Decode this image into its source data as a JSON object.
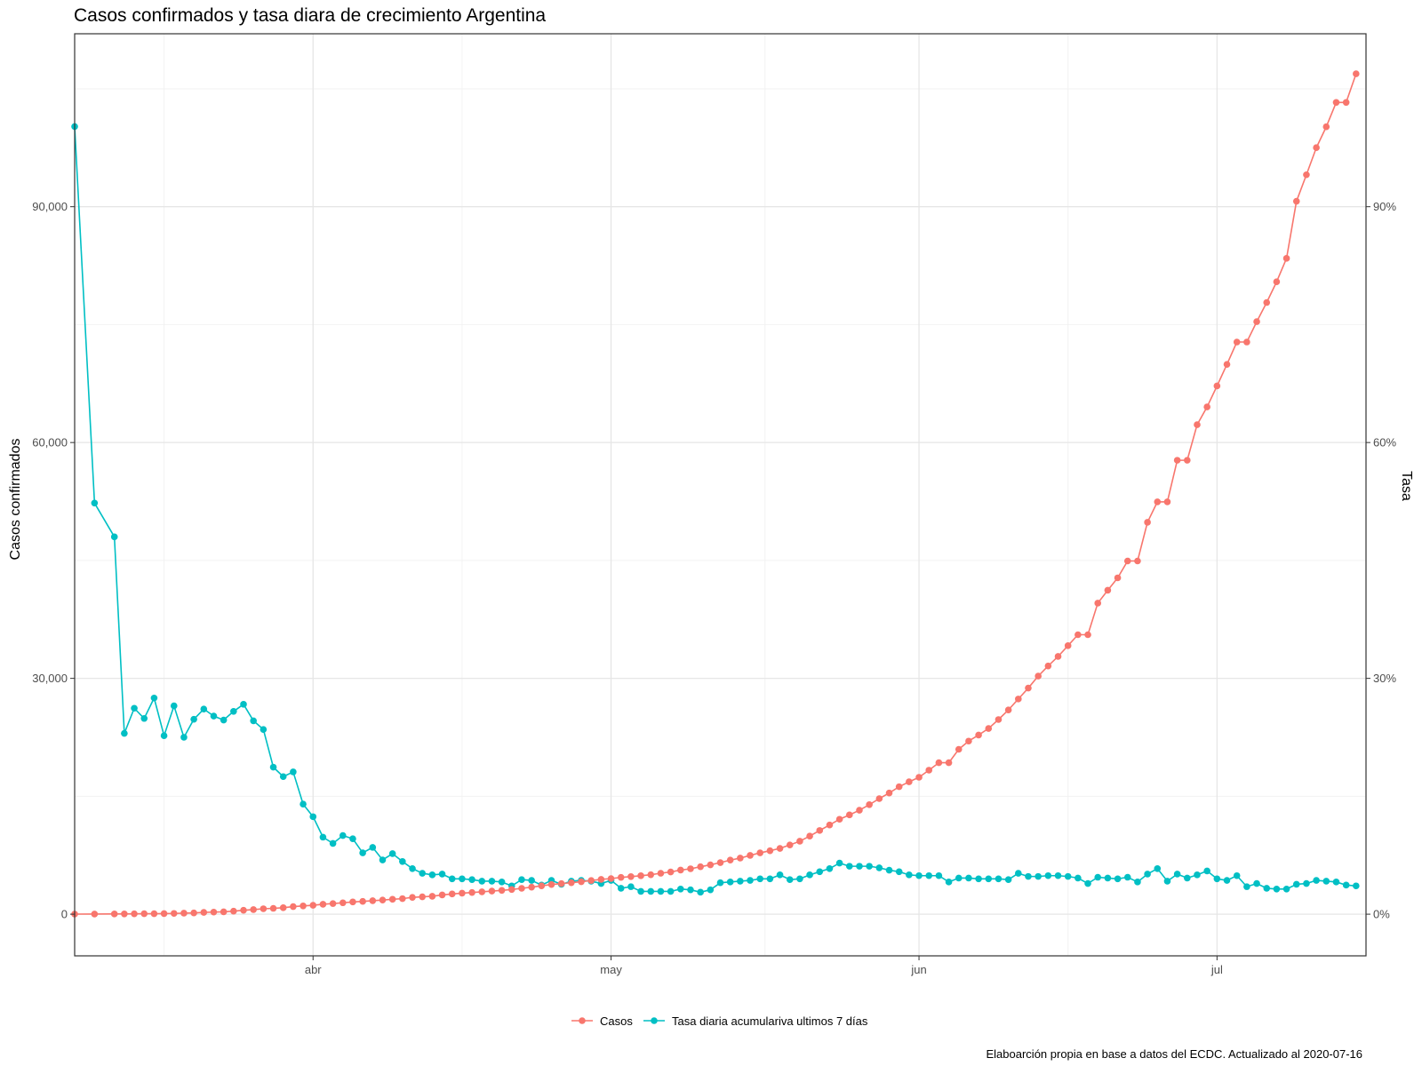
{
  "chart_data": {
    "type": "line",
    "title": "Casos confirmados y tasa diara de crecimiento Argentina",
    "ylabel": "Casos confirmados",
    "ylabel_right": "Tasa",
    "caption": "Elaboarción propia en base a datos del ECDC.  Actualizado al  2020-07-16",
    "x_range": [
      "2020-03-08",
      "2020-07-16"
    ],
    "x_ticks": [
      {
        "date": "2020-04-01",
        "label": "abr"
      },
      {
        "date": "2020-05-01",
        "label": "may"
      },
      {
        "date": "2020-06-01",
        "label": "jun"
      },
      {
        "date": "2020-07-01",
        "label": "jul"
      }
    ],
    "ylim": [
      -5300,
      112000
    ],
    "y_ticks": [
      {
        "value": 0,
        "label": "0"
      },
      {
        "value": 30000,
        "label": "30,000"
      },
      {
        "value": 60000,
        "label": "60,000"
      },
      {
        "value": 90000,
        "label": "90,000"
      }
    ],
    "y_right_ticks": [
      {
        "value": 0,
        "label": "0%"
      },
      {
        "value": 30,
        "label": "30%"
      },
      {
        "value": 60,
        "label": "60%"
      },
      {
        "value": 90,
        "label": "90%"
      }
    ],
    "secondary_axis": "Tasa (%) × 1000 = Casos confirmados",
    "grid": true,
    "legend_position": "bottom",
    "colors": {
      "casos": "#f8766d",
      "tasa": "#00bfc4"
    },
    "series": [
      {
        "name": "Casos",
        "axis": "left",
        "points": [
          [
            "2020-03-08",
            12
          ],
          [
            "2020-03-10",
            19
          ],
          [
            "2020-03-12",
            31
          ],
          [
            "2020-03-13",
            34
          ],
          [
            "2020-03-14",
            45
          ],
          [
            "2020-03-15",
            56
          ],
          [
            "2020-03-16",
            65
          ],
          [
            "2020-03-17",
            79
          ],
          [
            "2020-03-18",
            97
          ],
          [
            "2020-03-19",
            128
          ],
          [
            "2020-03-20",
            158
          ],
          [
            "2020-03-21",
            225
          ],
          [
            "2020-03-22",
            266
          ],
          [
            "2020-03-23",
            301
          ],
          [
            "2020-03-24",
            387
          ],
          [
            "2020-03-25",
            502
          ],
          [
            "2020-03-26",
            589
          ],
          [
            "2020-03-27",
            690
          ],
          [
            "2020-03-28",
            745
          ],
          [
            "2020-03-29",
            820
          ],
          [
            "2020-03-30",
            966
          ],
          [
            "2020-03-31",
            1054
          ],
          [
            "2020-04-01",
            1133
          ],
          [
            "2020-04-02",
            1265
          ],
          [
            "2020-04-03",
            1353
          ],
          [
            "2020-04-04",
            1451
          ],
          [
            "2020-04-05",
            1554
          ],
          [
            "2020-04-06",
            1628
          ],
          [
            "2020-04-07",
            1715
          ],
          [
            "2020-04-08",
            1795
          ],
          [
            "2020-04-09",
            1894
          ],
          [
            "2020-04-10",
            1975
          ],
          [
            "2020-04-11",
            2142
          ],
          [
            "2020-04-12",
            2208
          ],
          [
            "2020-04-13",
            2277
          ],
          [
            "2020-04-14",
            2443
          ],
          [
            "2020-04-15",
            2571
          ],
          [
            "2020-04-16",
            2669
          ],
          [
            "2020-04-17",
            2758
          ],
          [
            "2020-04-18",
            2839
          ],
          [
            "2020-04-19",
            2941
          ],
          [
            "2020-04-20",
            3031
          ],
          [
            "2020-04-21",
            3144
          ],
          [
            "2020-04-22",
            3288
          ],
          [
            "2020-04-23",
            3435
          ],
          [
            "2020-04-24",
            3607
          ],
          [
            "2020-04-25",
            3780
          ],
          [
            "2020-04-26",
            3892
          ],
          [
            "2020-04-27",
            4003
          ],
          [
            "2020-04-28",
            4127
          ],
          [
            "2020-04-29",
            4285
          ],
          [
            "2020-04-30",
            4428
          ],
          [
            "2020-05-01",
            4532
          ],
          [
            "2020-05-02",
            4681
          ],
          [
            "2020-05-03",
            4783
          ],
          [
            "2020-05-04",
            4887
          ],
          [
            "2020-05-05",
            5020
          ],
          [
            "2020-05-06",
            5208
          ],
          [
            "2020-05-07",
            5371
          ],
          [
            "2020-05-08",
            5611
          ],
          [
            "2020-05-09",
            5776
          ],
          [
            "2020-05-10",
            6034
          ],
          [
            "2020-05-11",
            6278
          ],
          [
            "2020-05-12",
            6563
          ],
          [
            "2020-05-13",
            6879
          ],
          [
            "2020-05-14",
            7134
          ],
          [
            "2020-05-15",
            7479
          ],
          [
            "2020-05-16",
            7805
          ],
          [
            "2020-05-17",
            8068
          ],
          [
            "2020-05-18",
            8371
          ],
          [
            "2020-05-19",
            8809
          ],
          [
            "2020-05-20",
            9283
          ],
          [
            "2020-05-21",
            9931
          ],
          [
            "2020-05-22",
            10649
          ],
          [
            "2020-05-23",
            11353
          ],
          [
            "2020-05-24",
            12076
          ],
          [
            "2020-05-25",
            12628
          ],
          [
            "2020-05-26",
            13228
          ],
          [
            "2020-05-27",
            13933
          ],
          [
            "2020-05-28",
            14702
          ],
          [
            "2020-05-29",
            15419
          ],
          [
            "2020-05-30",
            16214
          ],
          [
            "2020-05-31",
            16838
          ],
          [
            "2020-06-01",
            17415
          ],
          [
            "2020-06-02",
            18319
          ],
          [
            "2020-06-03",
            19268
          ],
          [
            "2020-06-04",
            19268
          ],
          [
            "2020-06-05",
            20974
          ],
          [
            "2020-06-06",
            22020
          ],
          [
            "2020-06-07",
            22794
          ],
          [
            "2020-06-08",
            23620
          ],
          [
            "2020-06-09",
            24761
          ],
          [
            "2020-06-10",
            25987
          ],
          [
            "2020-06-11",
            27373
          ],
          [
            "2020-06-12",
            28764
          ],
          [
            "2020-06-13",
            30295
          ],
          [
            "2020-06-14",
            31577
          ],
          [
            "2020-06-15",
            32785
          ],
          [
            "2020-06-16",
            34159
          ],
          [
            "2020-06-17",
            35552
          ],
          [
            "2020-06-18",
            35552
          ],
          [
            "2020-06-19",
            39570
          ],
          [
            "2020-06-20",
            41204
          ],
          [
            "2020-06-21",
            42785
          ],
          [
            "2020-06-22",
            44931
          ],
          [
            "2020-06-23",
            44931
          ],
          [
            "2020-06-24",
            49851
          ],
          [
            "2020-06-25",
            52457
          ],
          [
            "2020-06-26",
            52457
          ],
          [
            "2020-06-27",
            57744
          ],
          [
            "2020-06-28",
            57744
          ],
          [
            "2020-06-29",
            62268
          ],
          [
            "2020-06-30",
            64530
          ],
          [
            "2020-07-01",
            67197
          ],
          [
            "2020-07-02",
            69941
          ],
          [
            "2020-07-03",
            72786
          ],
          [
            "2020-07-04",
            72786
          ],
          [
            "2020-07-05",
            75376
          ],
          [
            "2020-07-06",
            77815
          ],
          [
            "2020-07-07",
            80447
          ],
          [
            "2020-07-08",
            83426
          ],
          [
            "2020-07-09",
            90693
          ],
          [
            "2020-07-10",
            94060
          ],
          [
            "2020-07-11",
            97509
          ],
          [
            "2020-07-12",
            100166
          ],
          [
            "2020-07-13",
            103265
          ],
          [
            "2020-07-14",
            103265
          ],
          [
            "2020-07-15",
            106910
          ]
        ]
      },
      {
        "name": "Tasa diaria acumulariva ultimos 7 días",
        "axis": "right",
        "unit": "%",
        "points": [
          [
            "2020-03-08",
            100.2
          ],
          [
            "2020-03-10",
            52.3
          ],
          [
            "2020-03-12",
            48.0
          ],
          [
            "2020-03-13",
            23.0
          ],
          [
            "2020-03-14",
            26.2
          ],
          [
            "2020-03-15",
            24.9
          ],
          [
            "2020-03-16",
            27.5
          ],
          [
            "2020-03-17",
            22.7
          ],
          [
            "2020-03-18",
            26.5
          ],
          [
            "2020-03-19",
            22.5
          ],
          [
            "2020-03-20",
            24.8
          ],
          [
            "2020-03-21",
            26.1
          ],
          [
            "2020-03-22",
            25.2
          ],
          [
            "2020-03-23",
            24.7
          ],
          [
            "2020-03-24",
            25.8
          ],
          [
            "2020-03-25",
            26.7
          ],
          [
            "2020-03-26",
            24.6
          ],
          [
            "2020-03-27",
            23.5
          ],
          [
            "2020-03-28",
            18.7
          ],
          [
            "2020-03-29",
            17.5
          ],
          [
            "2020-03-30",
            18.1
          ],
          [
            "2020-03-31",
            14.0
          ],
          [
            "2020-04-01",
            12.4
          ],
          [
            "2020-04-02",
            9.8
          ],
          [
            "2020-04-03",
            9.0
          ],
          [
            "2020-04-04",
            10.0
          ],
          [
            "2020-04-05",
            9.6
          ],
          [
            "2020-04-06",
            7.8
          ],
          [
            "2020-04-07",
            8.5
          ],
          [
            "2020-04-08",
            6.9
          ],
          [
            "2020-04-09",
            7.7
          ],
          [
            "2020-04-10",
            6.7
          ],
          [
            "2020-04-11",
            5.8
          ],
          [
            "2020-04-12",
            5.2
          ],
          [
            "2020-04-13",
            5.0
          ],
          [
            "2020-04-14",
            5.1
          ],
          [
            "2020-04-15",
            4.5
          ],
          [
            "2020-04-16",
            4.5
          ],
          [
            "2020-04-17",
            4.4
          ],
          [
            "2020-04-18",
            4.2
          ],
          [
            "2020-04-19",
            4.2
          ],
          [
            "2020-04-20",
            4.1
          ],
          [
            "2020-04-21",
            3.6
          ],
          [
            "2020-04-22",
            4.4
          ],
          [
            "2020-04-23",
            4.3
          ],
          [
            "2020-04-24",
            3.7
          ],
          [
            "2020-04-25",
            4.3
          ],
          [
            "2020-04-26",
            3.8
          ],
          [
            "2020-04-27",
            4.2
          ],
          [
            "2020-04-28",
            4.3
          ],
          [
            "2020-04-29",
            4.2
          ],
          [
            "2020-04-30",
            3.9
          ],
          [
            "2020-05-01",
            4.3
          ],
          [
            "2020-05-02",
            3.3
          ],
          [
            "2020-05-03",
            3.5
          ],
          [
            "2020-05-04",
            2.9
          ],
          [
            "2020-05-05",
            2.9
          ],
          [
            "2020-05-06",
            2.9
          ],
          [
            "2020-05-07",
            2.9
          ],
          [
            "2020-05-08",
            3.2
          ],
          [
            "2020-05-09",
            3.1
          ],
          [
            "2020-05-10",
            2.8
          ],
          [
            "2020-05-11",
            3.1
          ],
          [
            "2020-05-12",
            4.0
          ],
          [
            "2020-05-13",
            4.1
          ],
          [
            "2020-05-14",
            4.2
          ],
          [
            "2020-05-15",
            4.3
          ],
          [
            "2020-05-16",
            4.5
          ],
          [
            "2020-05-17",
            4.5
          ],
          [
            "2020-05-18",
            5.0
          ],
          [
            "2020-05-19",
            4.4
          ],
          [
            "2020-05-20",
            4.5
          ],
          [
            "2020-05-21",
            5.0
          ],
          [
            "2020-05-22",
            5.4
          ],
          [
            "2020-05-23",
            5.8
          ],
          [
            "2020-05-24",
            6.5
          ],
          [
            "2020-05-25",
            6.1
          ],
          [
            "2020-05-26",
            6.1
          ],
          [
            "2020-05-27",
            6.1
          ],
          [
            "2020-05-28",
            5.9
          ],
          [
            "2020-05-29",
            5.6
          ],
          [
            "2020-05-30",
            5.4
          ],
          [
            "2020-05-31",
            5.0
          ],
          [
            "2020-06-01",
            4.9
          ],
          [
            "2020-06-02",
            4.9
          ],
          [
            "2020-06-03",
            4.9
          ],
          [
            "2020-06-04",
            4.1
          ],
          [
            "2020-06-05",
            4.6
          ],
          [
            "2020-06-06",
            4.6
          ],
          [
            "2020-06-07",
            4.5
          ],
          [
            "2020-06-08",
            4.5
          ],
          [
            "2020-06-09",
            4.5
          ],
          [
            "2020-06-10",
            4.4
          ],
          [
            "2020-06-11",
            5.2
          ],
          [
            "2020-06-12",
            4.8
          ],
          [
            "2020-06-13",
            4.8
          ],
          [
            "2020-06-14",
            4.9
          ],
          [
            "2020-06-15",
            4.9
          ],
          [
            "2020-06-16",
            4.8
          ],
          [
            "2020-06-17",
            4.6
          ],
          [
            "2020-06-18",
            3.9
          ],
          [
            "2020-06-19",
            4.7
          ],
          [
            "2020-06-20",
            4.6
          ],
          [
            "2020-06-21",
            4.5
          ],
          [
            "2020-06-22",
            4.7
          ],
          [
            "2020-06-23",
            4.1
          ],
          [
            "2020-06-24",
            5.1
          ],
          [
            "2020-06-25",
            5.8
          ],
          [
            "2020-06-26",
            4.2
          ],
          [
            "2020-06-27",
            5.1
          ],
          [
            "2020-06-28",
            4.6
          ],
          [
            "2020-06-29",
            5.0
          ],
          [
            "2020-06-30",
            5.5
          ],
          [
            "2020-07-01",
            4.5
          ],
          [
            "2020-07-02",
            4.3
          ],
          [
            "2020-07-03",
            4.9
          ],
          [
            "2020-07-04",
            3.5
          ],
          [
            "2020-07-05",
            3.9
          ],
          [
            "2020-07-06",
            3.3
          ],
          [
            "2020-07-07",
            3.2
          ],
          [
            "2020-07-08",
            3.2
          ],
          [
            "2020-07-09",
            3.8
          ],
          [
            "2020-07-10",
            3.9
          ],
          [
            "2020-07-11",
            4.3
          ],
          [
            "2020-07-12",
            4.2
          ],
          [
            "2020-07-13",
            4.1
          ],
          [
            "2020-07-14",
            3.7
          ],
          [
            "2020-07-15",
            3.6
          ]
        ]
      }
    ]
  }
}
